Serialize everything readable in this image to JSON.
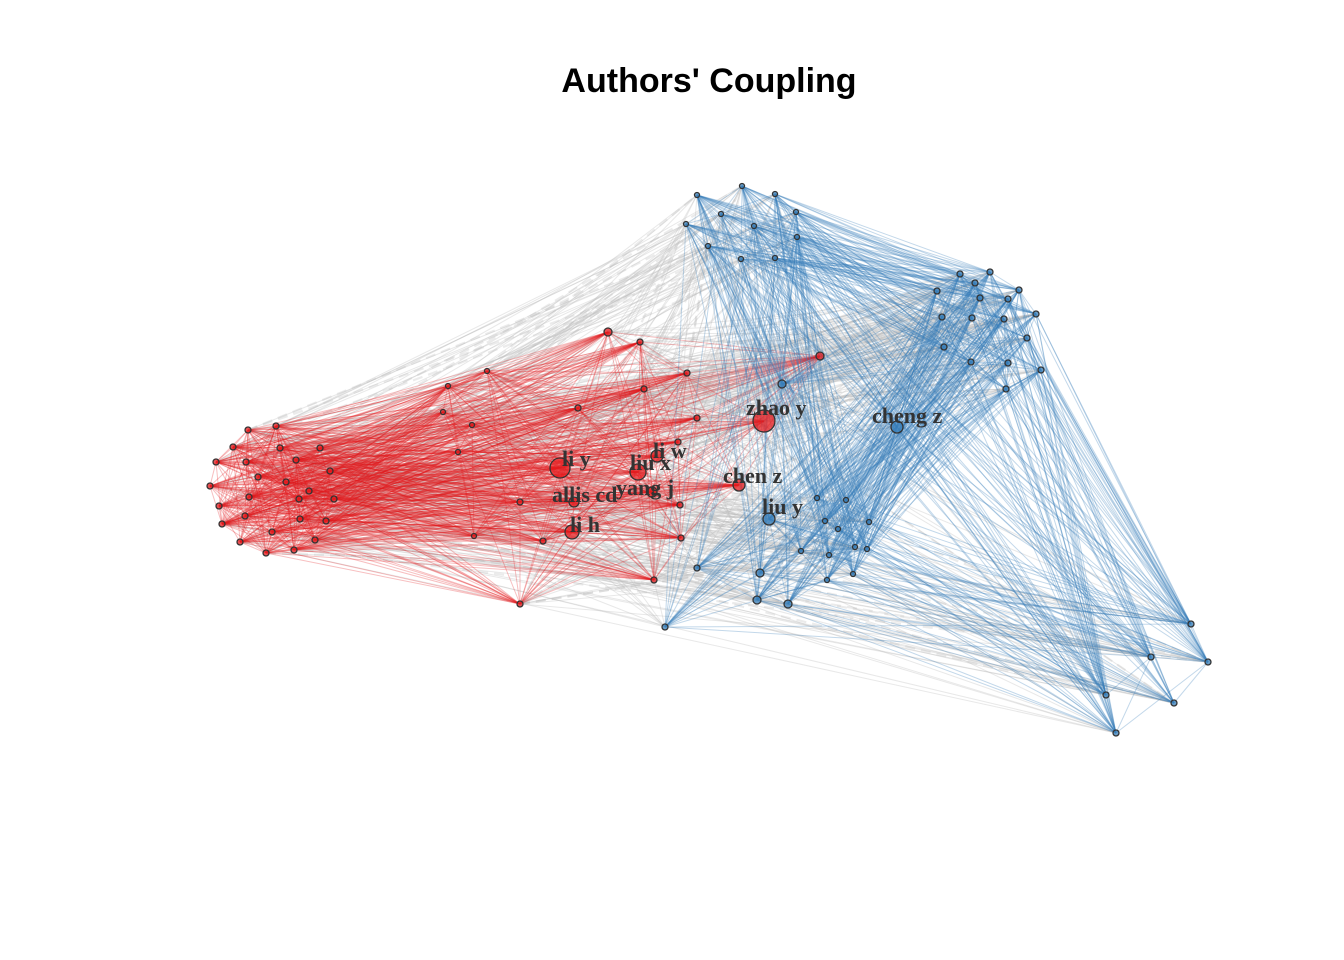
{
  "title": "Authors' Coupling",
  "colors": {
    "cluster_red": "#e41a1c",
    "cluster_blue": "#377eb8",
    "between_edge": "#bdbdbd",
    "node_stroke": "#333333",
    "label": "#333333"
  },
  "clusters": [
    {
      "id": "red",
      "color": "#e41a1c"
    },
    {
      "id": "blue",
      "color": "#377eb8"
    }
  ],
  "labeled_nodes": [
    {
      "id": "li-y",
      "label": "li y",
      "cluster": "red"
    },
    {
      "id": "li-w",
      "label": "li w",
      "cluster": "red"
    },
    {
      "id": "liu-x",
      "label": "liu x",
      "cluster": "red"
    },
    {
      "id": "yang-j",
      "label": "yang j",
      "cluster": "red"
    },
    {
      "id": "allis-ch",
      "label": "allis cd",
      "cluster": "red"
    },
    {
      "id": "li-h",
      "label": "li h",
      "cluster": "red"
    },
    {
      "id": "zhao-y",
      "label": "zhao y",
      "cluster": "red"
    },
    {
      "id": "chen-z",
      "label": "chen z",
      "cluster": "red"
    },
    {
      "id": "cheng-z",
      "label": "cheng z",
      "cluster": "blue"
    },
    {
      "id": "liu-y",
      "label": "liu y",
      "cluster": "blue"
    }
  ]
}
